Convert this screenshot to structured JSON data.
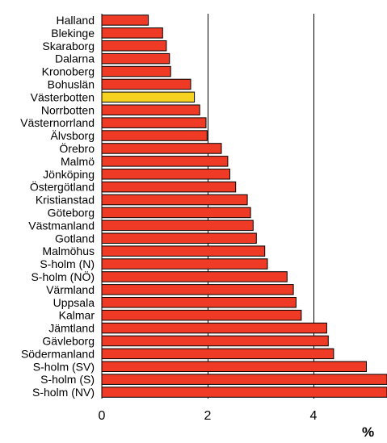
{
  "chart_data": {
    "type": "bar",
    "orientation": "horizontal",
    "categories": [
      "Halland",
      "Blekinge",
      "Skaraborg",
      "Dalarna",
      "Kronoberg",
      "Bohuslän",
      "Västerbotten",
      "Norrbotten",
      "Västernorrland",
      "Älvsborg",
      "Örebro",
      "Malmö",
      "Jönköping",
      "Östergötland",
      "Kristianstad",
      "Göteborg",
      "Västmanland",
      "Gotland",
      "Malmöhus",
      "S-holm (N)",
      "S-holm (NÖ)",
      "Värmland",
      "Uppsala",
      "Kalmar",
      "Jämtland",
      "Gävleborg",
      "Södermanland",
      "S-holm (SV)",
      "S-holm (S)",
      "S-holm (NV)"
    ],
    "values": [
      0.88,
      1.15,
      1.22,
      1.28,
      1.3,
      1.68,
      1.75,
      1.85,
      1.97,
      1.99,
      2.26,
      2.38,
      2.42,
      2.53,
      2.75,
      2.81,
      2.86,
      2.92,
      3.08,
      3.13,
      3.5,
      3.62,
      3.67,
      3.77,
      4.25,
      4.28,
      4.38,
      5.0,
      5.5,
      5.6
    ],
    "highlight_index": 6,
    "colors": {
      "bar": "#ef3a26",
      "highlight": "#f5d21f",
      "outline": "#000000",
      "gridline": "#000000"
    },
    "xlim": [
      0,
      5.4
    ],
    "xticks": [
      0,
      2,
      4
    ],
    "xtick_labels": [
      "0",
      "2",
      "4"
    ],
    "gridlines_at": [
      2,
      4
    ],
    "xunit": "%"
  }
}
